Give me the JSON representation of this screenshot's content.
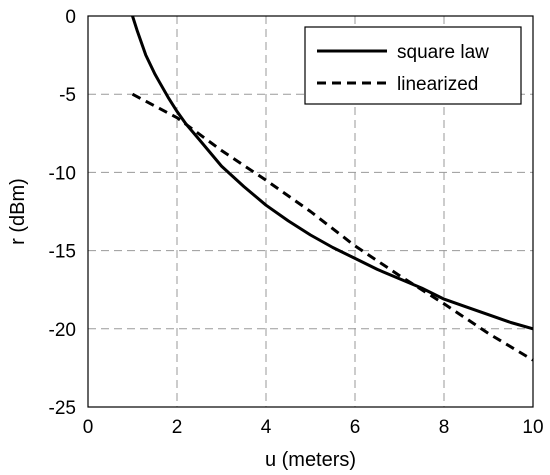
{
  "chart_data": {
    "type": "line",
    "title": "",
    "xlabel": "u (meters)",
    "ylabel": "r (dBm)",
    "xlim": [
      0,
      10
    ],
    "ylim": [
      -25,
      0
    ],
    "xticks": [
      0,
      2,
      4,
      6,
      8,
      10
    ],
    "yticks": [
      0,
      -5,
      -10,
      -15,
      -20,
      -25
    ],
    "grid": true,
    "legend_position": "top-right",
    "series": [
      {
        "name": "square law",
        "style": "solid",
        "color": "#000000",
        "x": [
          1.0,
          1.1,
          1.2,
          1.3,
          1.4,
          1.5,
          1.6,
          1.8,
          2.0,
          2.2,
          2.5,
          3.0,
          3.5,
          4.0,
          4.5,
          5.0,
          5.5,
          6.0,
          6.5,
          7.0,
          7.5,
          8.0,
          8.5,
          9.0,
          9.5,
          10.0
        ],
        "y": [
          0.0,
          -0.9,
          -1.7,
          -2.5,
          -3.1,
          -3.7,
          -4.2,
          -5.2,
          -6.1,
          -6.9,
          -7.9,
          -9.6,
          -10.9,
          -12.1,
          -13.1,
          -14.0,
          -14.8,
          -15.5,
          -16.2,
          -16.8,
          -17.4,
          -18.1,
          -18.6,
          -19.1,
          -19.6,
          -20.0
        ]
      },
      {
        "name": "linearized",
        "style": "dashed",
        "color": "#000000",
        "x": [
          1.0,
          2.0,
          3.0,
          4.0,
          5.0,
          6.0,
          7.0,
          8.0,
          9.0,
          10.0
        ],
        "y": [
          -5.0,
          -6.5,
          -8.6,
          -10.5,
          -12.5,
          -14.7,
          -16.6,
          -18.4,
          -20.3,
          -22.0
        ]
      }
    ]
  }
}
